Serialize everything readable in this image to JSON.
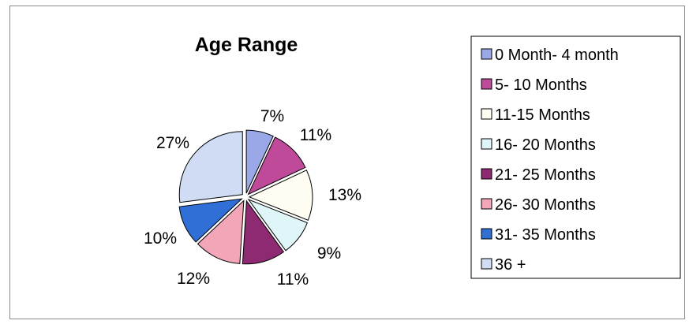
{
  "chart_data": {
    "type": "pie",
    "title": "Age Range",
    "legend_position": "right",
    "slices": [
      {
        "label": "0 Month- 4 month",
        "value": 7,
        "display": "7%",
        "color": "#9aa8e8"
      },
      {
        "label": "5- 10 Months",
        "value": 11,
        "display": "11%",
        "color": "#c04a9a"
      },
      {
        "label": "11-15 Months",
        "value": 13,
        "display": "13%",
        "color": "#fffdf2"
      },
      {
        "label": "16- 20 Months",
        "value": 9,
        "display": "9%",
        "color": "#dff5f7"
      },
      {
        "label": "21- 25 Months",
        "value": 11,
        "display": "11%",
        "color": "#8e2a72"
      },
      {
        "label": "26- 30 Months",
        "value": 12,
        "display": "12%",
        "color": "#f2a6b8"
      },
      {
        "label": "31- 35 Months",
        "value": 10,
        "display": "10%",
        "color": "#2f6fd6"
      },
      {
        "label": "36 +",
        "value": 27,
        "display": "27%",
        "color": "#cfdcf4"
      }
    ]
  }
}
